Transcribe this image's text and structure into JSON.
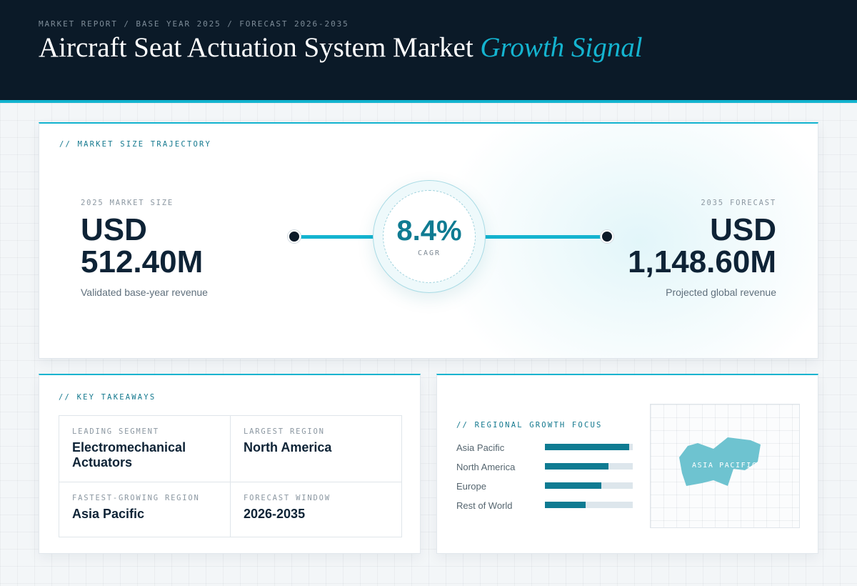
{
  "header": {
    "breadcrumb": "MARKET REPORT / BASE YEAR 2025 / FORECAST 2026-2035",
    "title": "Aircraft Seat Actuation System Market",
    "title_highlight": "Growth Signal"
  },
  "trajectory": {
    "kicker": "// MARKET SIZE TRAJECTORY",
    "start": {
      "label": "2025 MARKET SIZE",
      "currency": "USD",
      "value": "512.40M",
      "desc": "Validated base-year revenue"
    },
    "end": {
      "label": "2035 FORECAST",
      "currency": "USD",
      "value": "1,148.60M",
      "desc": "Projected global revenue"
    },
    "cagr": {
      "value": "8.4%",
      "label": "CAGR"
    }
  },
  "takeaways": {
    "kicker": "// KEY TAKEAWAYS",
    "items": [
      {
        "label": "LEADING SEGMENT",
        "value": "Electromechanical Actuators"
      },
      {
        "label": "LARGEST REGION",
        "value": "North America"
      },
      {
        "label": "FASTEST-GROWING REGION",
        "value": "Asia Pacific"
      },
      {
        "label": "FORECAST WINDOW",
        "value": "2026-2035"
      }
    ]
  },
  "regional": {
    "kicker": "// REGIONAL GROWTH FOCUS",
    "regions": [
      {
        "name": "Asia Pacific",
        "level": 0.96
      },
      {
        "name": "North America",
        "level": 0.72
      },
      {
        "name": "Europe",
        "level": 0.64
      },
      {
        "name": "Rest of World",
        "level": 0.46
      }
    ],
    "map_label": "ASIA PACIFIC",
    "colors": {
      "bar": "#0f7b92",
      "track": "#dde6ec",
      "map_shape": "#6ec3d0"
    }
  }
}
